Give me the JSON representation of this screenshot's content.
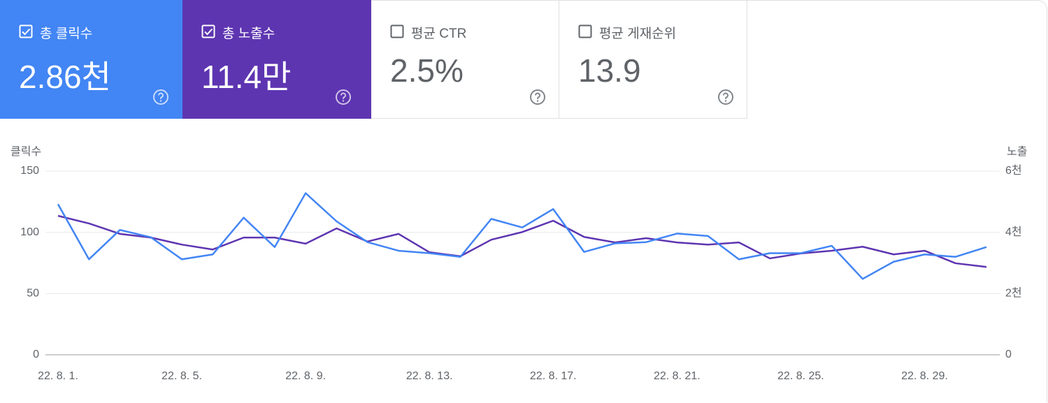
{
  "cards": [
    {
      "label": "총 클릭수",
      "value": "2.86천",
      "selected": true,
      "color": "#4285f4"
    },
    {
      "label": "총 노출수",
      "value": "11.4만",
      "selected": true,
      "color": "#5e35b1"
    },
    {
      "label": "평균 CTR",
      "value": "2.5%",
      "selected": false
    },
    {
      "label": "평균 게재순위",
      "value": "13.9",
      "selected": false
    }
  ],
  "chart_data": {
    "type": "line",
    "ylabel": "클릭수",
    "y2label": "노출",
    "categories": [
      "22. 8. 1.",
      null,
      null,
      null,
      "22. 8. 5.",
      null,
      null,
      null,
      "22. 8. 9.",
      null,
      null,
      null,
      "22. 8. 13.",
      null,
      null,
      null,
      "22. 8. 17.",
      null,
      null,
      null,
      "22. 8. 21.",
      null,
      null,
      null,
      "22. 8. 25.",
      null,
      null,
      null,
      "22. 8. 29.",
      null,
      null
    ],
    "series": [
      {
        "color": "#4285f4",
        "values": [
          123,
          78,
          102,
          96,
          78,
          82,
          112,
          88,
          132,
          109,
          92,
          85,
          83,
          80,
          111,
          104,
          119,
          84,
          91,
          92,
          99,
          97,
          78,
          83,
          83,
          89,
          62,
          76,
          82,
          80,
          88
        ]
      },
      {
        "color": "#5e35b1",
        "axis": "y2",
        "values": [
          4540,
          4290,
          3950,
          3830,
          3600,
          3440,
          3830,
          3830,
          3630,
          4130,
          3700,
          3950,
          3350,
          3220,
          3760,
          4010,
          4380,
          3850,
          3670,
          3810,
          3670,
          3600,
          3670,
          3150,
          3310,
          3400,
          3530,
          3280,
          3400,
          2990,
          2870
        ]
      }
    ],
    "ylim": [
      0,
      150
    ],
    "yticks": [
      0,
      50,
      100,
      150
    ],
    "y2lim": [
      0,
      6000
    ],
    "y2ticks": [
      0,
      {
        "value": 2000,
        "label": "2천"
      },
      {
        "value": 4000,
        "label": "4천"
      },
      {
        "value": 6000,
        "label": "6천"
      }
    ],
    "grid": true
  }
}
